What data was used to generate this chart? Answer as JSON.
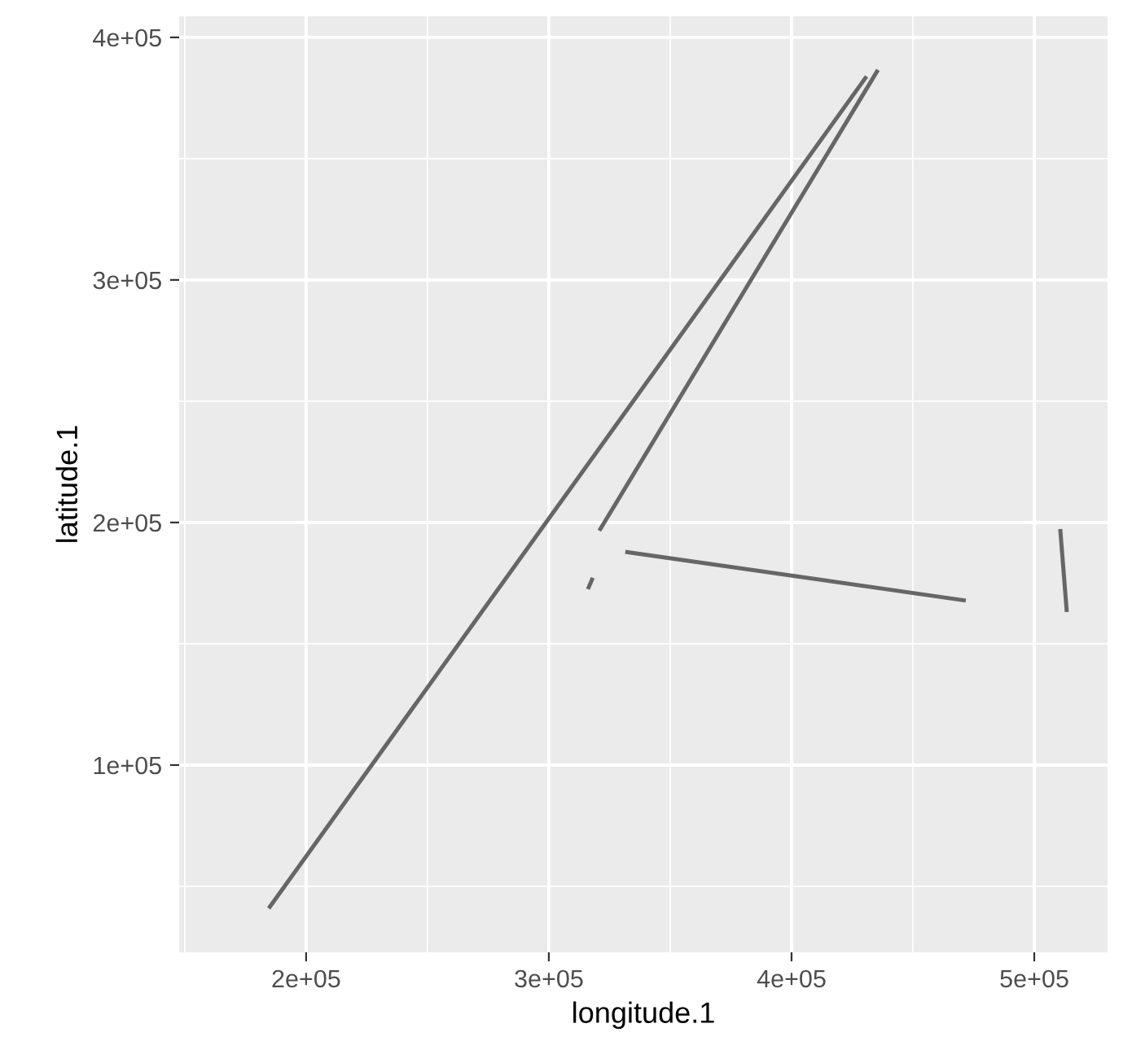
{
  "chart_data": {
    "type": "line",
    "xlabel": "longitude.1",
    "ylabel": "latitude.1",
    "xlim": [
      147700,
      530200
    ],
    "ylim": [
      22800,
      408700
    ],
    "xticks": [
      {
        "value": 200000,
        "label": "2e+05"
      },
      {
        "value": 300000,
        "label": "3e+05"
      },
      {
        "value": 400000,
        "label": "4e+05"
      },
      {
        "value": 500000,
        "label": "5e+05"
      }
    ],
    "yticks": [
      {
        "value": 100000,
        "label": "1e+05"
      },
      {
        "value": 200000,
        "label": "2e+05"
      },
      {
        "value": 300000,
        "label": "3e+05"
      },
      {
        "value": 400000,
        "label": "4e+05"
      }
    ],
    "grid": true,
    "legend": false,
    "series": [
      {
        "color": "#666666",
        "x": [
          184600,
          430900
        ],
        "values": [
          40900,
          383900
        ]
      },
      {
        "color": "#666666",
        "x": [
          320800,
          435600
        ],
        "values": [
          196600,
          386600
        ]
      },
      {
        "color": "#666666",
        "x": [
          316100,
          318100
        ],
        "values": [
          172500,
          177200
        ]
      },
      {
        "color": "#666666",
        "x": [
          331500,
          471800
        ],
        "values": [
          187900,
          167800
        ]
      },
      {
        "color": "#666666",
        "x": [
          510700,
          513400
        ],
        "values": [
          197300,
          163100
        ]
      }
    ]
  }
}
